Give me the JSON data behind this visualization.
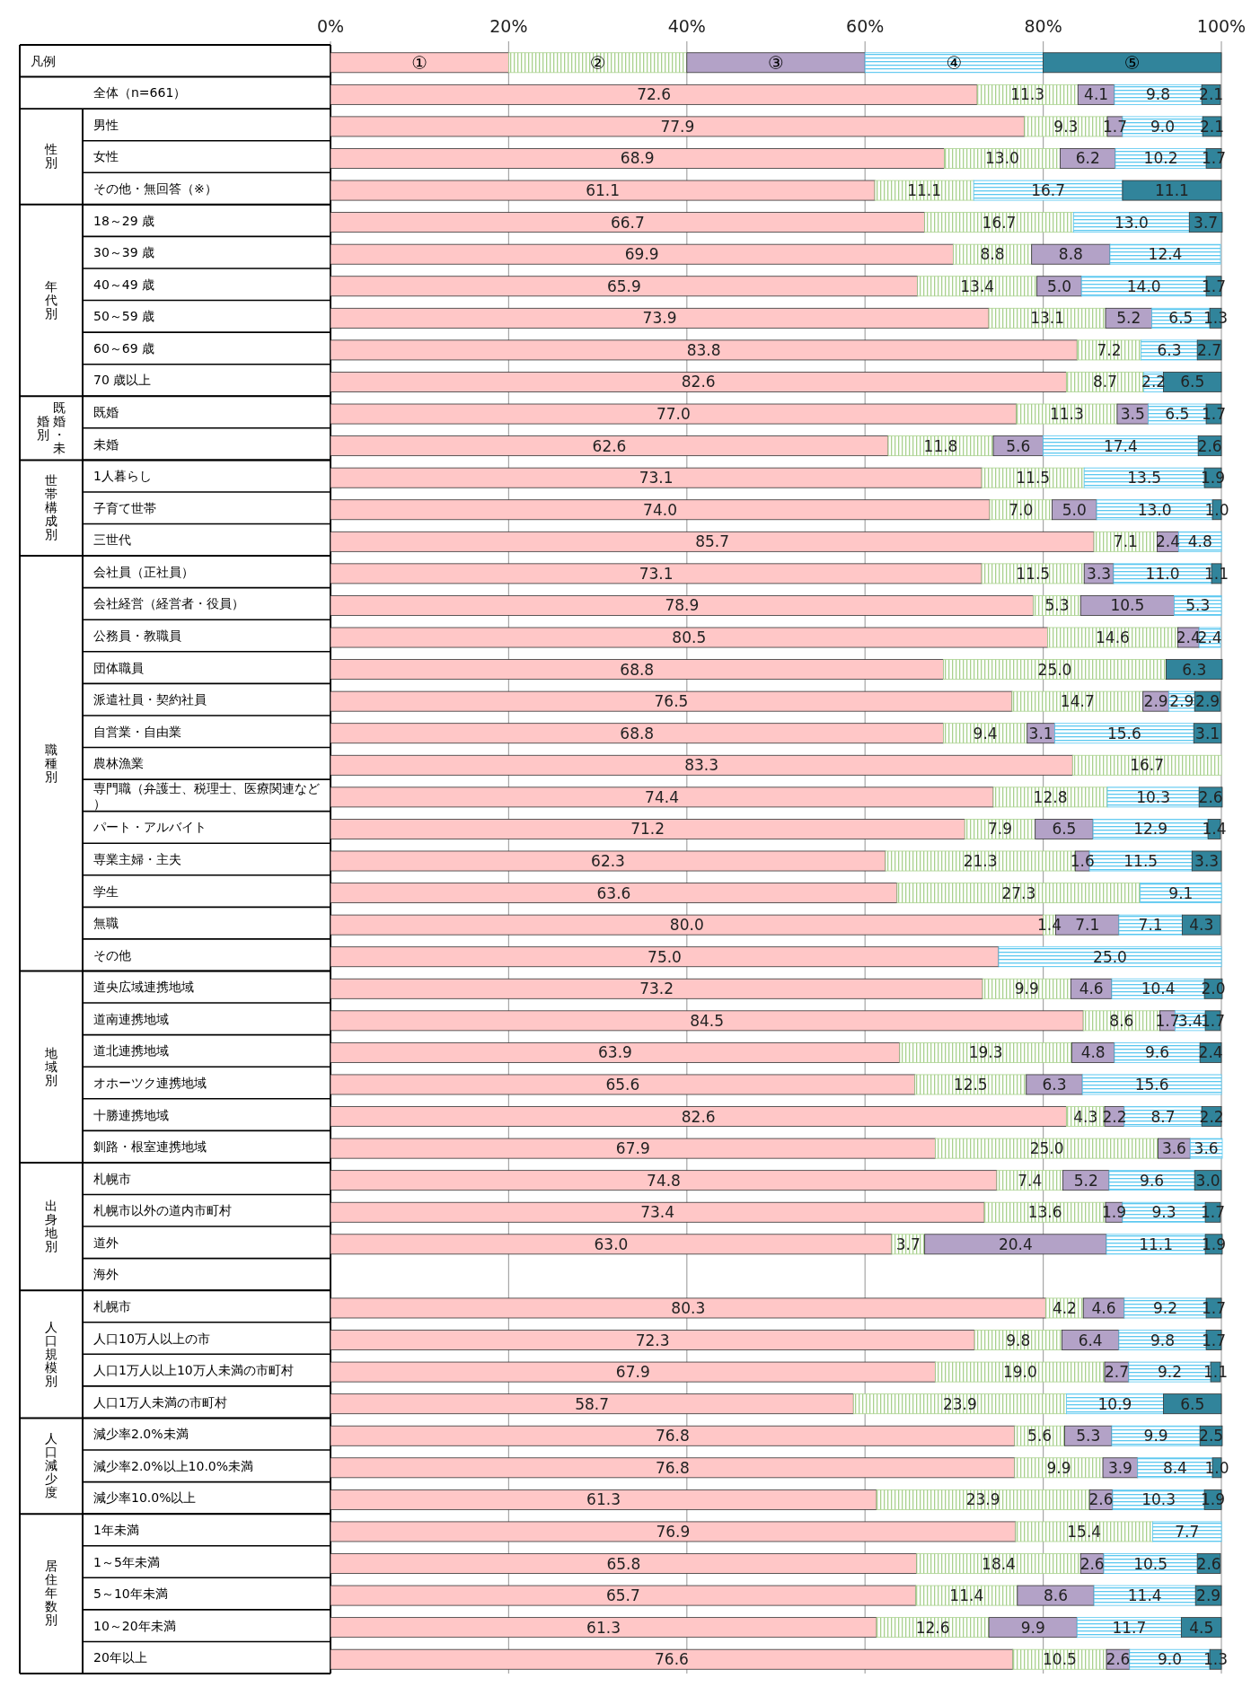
{
  "chart_data": {
    "type": "bar",
    "orientation": "horizontal",
    "stacked": true,
    "legend": "top",
    "legend_title": "凡例",
    "grid": "x",
    "xlim": [
      0,
      100
    ],
    "xticks": [
      {
        "value": 0,
        "label": "0%"
      },
      {
        "value": 20,
        "label": "20%"
      },
      {
        "value": 40,
        "label": "40%"
      },
      {
        "value": 60,
        "label": "60%"
      },
      {
        "value": 80,
        "label": "80%"
      },
      {
        "value": 100,
        "label": "100%"
      }
    ],
    "categories": [
      "全体（n=661）",
      "男性",
      "女性",
      "その他・無回答（※）",
      "18～29 歳",
      "30～39 歳",
      "40～49 歳",
      "50～59 歳",
      "60～69 歳",
      "70 歳以上",
      "既婚",
      "未婚",
      "1人暮らし",
      "子育て世帯",
      "三世代",
      "会社員（正社員）",
      "会社経営（経営者・役員）",
      "公務員・教職員",
      "団体職員",
      "派遣社員・契約社員",
      "自営業・自由業",
      "農林漁業",
      "専門職（弁護士、税理士、医療関連など）",
      "パート・アルバイト",
      "専業主婦・主夫",
      "学生",
      "無職",
      "その他",
      "道央広域連携地域",
      "道南連携地域",
      "道北連携地域",
      "オホーツク連携地域",
      "十勝連携地域",
      "釧路・根室連携地域",
      "札幌市",
      "札幌市以外の道内市町村",
      "道外",
      "海外",
      "札幌市",
      "人口10万人以上の市",
      "人口1万人以上10万人未満の市町村",
      "人口1万人未満の市町村",
      "減少率2.0%未満",
      "減少率2.0%以上10.0%未満",
      "減少率10.0%以上",
      "1年未満",
      "1～5年未満",
      "5～10年未満",
      "10～20年未満",
      "20年以上"
    ],
    "annotations": [
      "性別",
      "年代別",
      "既婚・未婚別",
      "世帯構成別",
      "職種別",
      "地域別",
      "出身地別",
      "人口規模別",
      "人口減少度",
      "居住年数別"
    ],
    "series": [
      {
        "name": "①",
        "color": "#ffc7c7",
        "values": [
          72.6,
          77.9,
          68.9,
          61.1,
          66.7,
          69.9,
          65.9,
          73.9,
          83.8,
          82.6,
          77.0,
          62.6,
          73.1,
          74.0,
          85.7,
          73.1,
          78.9,
          80.5,
          68.8,
          76.5,
          68.8,
          83.3,
          74.4,
          71.2,
          62.3,
          63.6,
          80.0,
          75.0,
          73.2,
          84.5,
          63.9,
          65.6,
          82.6,
          67.9,
          74.8,
          73.4,
          63.0,
          null,
          80.3,
          72.3,
          67.9,
          58.7,
          76.8,
          76.8,
          61.3,
          76.9,
          65.8,
          65.7,
          61.3,
          76.6
        ],
        "value_labels": [
          "72.6",
          "77.9",
          "68.9",
          "61.1",
          "66.7",
          "69.9",
          "65.9",
          "73.9",
          "83.8",
          "82.6",
          "77.0",
          "62.6",
          "73.1",
          "74.0",
          "85.7",
          "73.1",
          "78.9",
          "80.5",
          "68.8",
          "76.5",
          "68.8",
          "83.3",
          "74.4",
          "71.2",
          "62.3",
          "63.6",
          "80.0",
          "75.0",
          "73.2",
          "84.5",
          "63.9",
          "65.6",
          "82.6",
          "67.9",
          "74.8",
          "73.4",
          "63.0",
          null,
          "80.3",
          "72.3",
          "67.9",
          "58.7",
          "76.8",
          "76.8",
          "61.3",
          "76.9",
          "65.8",
          "65.7",
          "61.3",
          "76.6"
        ]
      },
      {
        "name": "②",
        "color": "#a9d18e",
        "values": [
          11.3,
          9.3,
          13.0,
          11.1,
          16.7,
          8.8,
          13.4,
          13.1,
          7.2,
          8.7,
          11.3,
          11.8,
          11.5,
          7.0,
          7.1,
          11.5,
          5.3,
          14.6,
          25.0,
          14.7,
          9.4,
          16.7,
          12.8,
          7.9,
          21.3,
          27.3,
          1.4,
          null,
          9.9,
          8.6,
          19.3,
          12.5,
          4.3,
          25.0,
          7.4,
          13.6,
          3.7,
          null,
          4.2,
          9.8,
          19.0,
          23.9,
          5.6,
          9.9,
          23.9,
          15.4,
          18.4,
          11.4,
          12.6,
          10.5
        ],
        "value_labels": [
          "11.3",
          "9.3",
          "13.0",
          "11.1",
          "16.7",
          "8.8",
          "13.4",
          "13.1",
          "7.2",
          "8.7",
          "11.3",
          "11.8",
          "11.5",
          "7.0",
          "7.1",
          "11.5",
          "5.3",
          "14.6",
          "25.0",
          "14.7",
          "9.4",
          "16.7",
          "12.8",
          "7.9",
          "21.3",
          "27.3",
          "1.4",
          null,
          "9.9",
          "8.6",
          "19.3",
          "12.5",
          "4.3",
          "25.0",
          "7.4",
          "13.6",
          "3.7",
          null,
          "4.2",
          "9.8",
          "19.0",
          "23.9",
          "5.6",
          "9.9",
          "23.9",
          "15.4",
          "18.4",
          "11.4",
          "12.6",
          "10.5"
        ]
      },
      {
        "name": "③",
        "color": "#b3a2c7",
        "values": [
          4.1,
          1.7,
          6.2,
          null,
          null,
          8.8,
          5.0,
          5.2,
          null,
          null,
          3.5,
          5.6,
          null,
          5.0,
          2.4,
          3.3,
          10.5,
          2.4,
          null,
          2.9,
          3.1,
          null,
          null,
          6.5,
          1.6,
          null,
          7.1,
          null,
          4.6,
          1.7,
          4.8,
          6.3,
          2.2,
          3.6,
          5.2,
          1.9,
          20.4,
          null,
          4.6,
          6.4,
          2.7,
          null,
          5.3,
          3.9,
          2.6,
          null,
          2.6,
          8.6,
          9.9,
          2.6
        ],
        "value_labels": [
          "4.1",
          "1.7",
          "6.2",
          null,
          null,
          "8.8",
          "5.0",
          "5.2",
          null,
          null,
          "3.5",
          "5.6",
          null,
          "5.0",
          "2.4",
          "3.3",
          "10.5",
          "2.4",
          null,
          "2.9",
          "3.1",
          null,
          null,
          "6.5",
          "1.6",
          null,
          "7.1",
          null,
          "4.6",
          "1.7",
          "4.8",
          "6.3",
          "2.2",
          "3.6",
          "5.2",
          "1.9",
          "20.4",
          null,
          "4.6",
          "6.4",
          "2.7",
          null,
          "5.3",
          "3.9",
          "2.6",
          null,
          "2.6",
          "8.6",
          "9.9",
          "2.6"
        ]
      },
      {
        "name": "④",
        "color": "#5bc8f0",
        "values": [
          9.8,
          9.0,
          10.2,
          16.7,
          13.0,
          12.4,
          14.0,
          6.5,
          6.3,
          2.2,
          6.5,
          17.4,
          13.5,
          13.0,
          4.8,
          11.0,
          5.3,
          2.4,
          null,
          2.9,
          15.6,
          null,
          10.3,
          12.9,
          11.5,
          9.1,
          7.1,
          25.0,
          10.4,
          3.4,
          9.6,
          15.6,
          8.7,
          3.6,
          9.6,
          9.3,
          11.1,
          null,
          9.2,
          9.8,
          9.2,
          10.9,
          9.9,
          8.4,
          10.3,
          7.7,
          10.5,
          11.4,
          11.7,
          9.0
        ],
        "value_labels": [
          "9.8",
          "9.0",
          "10.2",
          "16.7",
          "13.0",
          "12.4",
          "14.0",
          "6.5",
          "6.3",
          "2.2",
          "6.5",
          "17.4",
          "13.5",
          "13.0",
          "4.8",
          "11.0",
          "5.3",
          "2.4",
          null,
          "2.9",
          "15.6",
          null,
          "10.3",
          "12.9",
          "11.5",
          "9.1",
          "7.1",
          "25.0",
          "10.4",
          "3.4",
          "9.6",
          "15.6",
          "8.7",
          "3.6",
          "9.6",
          "9.3",
          "11.1",
          null,
          "9.2",
          "9.8",
          "9.2",
          "10.9",
          "9.9",
          "8.4",
          "10.3",
          "7.7",
          "10.5",
          "11.4",
          "11.7",
          "9.0"
        ]
      },
      {
        "name": "⑤",
        "color": "#31849b",
        "values": [
          2.1,
          2.1,
          1.7,
          11.1,
          3.7,
          null,
          1.7,
          1.3,
          2.7,
          6.5,
          1.7,
          2.6,
          1.9,
          1.0,
          null,
          1.1,
          null,
          null,
          6.3,
          2.9,
          3.1,
          null,
          2.6,
          1.4,
          3.3,
          null,
          4.3,
          null,
          2.0,
          1.7,
          2.4,
          null,
          2.2,
          null,
          3.0,
          1.7,
          1.9,
          null,
          1.7,
          1.7,
          1.1,
          6.5,
          2.5,
          1.0,
          1.9,
          null,
          2.6,
          2.9,
          4.5,
          1.3
        ],
        "value_labels": [
          "2.1",
          "2.1",
          "1.7",
          "11.1",
          "3.7",
          null,
          "1.7",
          "1.3",
          "2.7",
          "6.5",
          "1.7",
          "2.6",
          "1.9",
          "1.0",
          null,
          "1.1",
          null,
          null,
          "6.3",
          "2.9",
          "3.1",
          null,
          "2.6",
          "1.4",
          "3.3",
          null,
          "4.3",
          null,
          "2.0",
          "1.7",
          "2.4",
          null,
          "2.2",
          null,
          "3.0",
          "1.7",
          "1.9",
          null,
          "1.7",
          "1.7",
          "1.1",
          "6.5",
          "2.5",
          "1.0",
          "1.9",
          null,
          "2.6",
          "2.9",
          "4.5",
          "1.3"
        ]
      }
    ]
  }
}
